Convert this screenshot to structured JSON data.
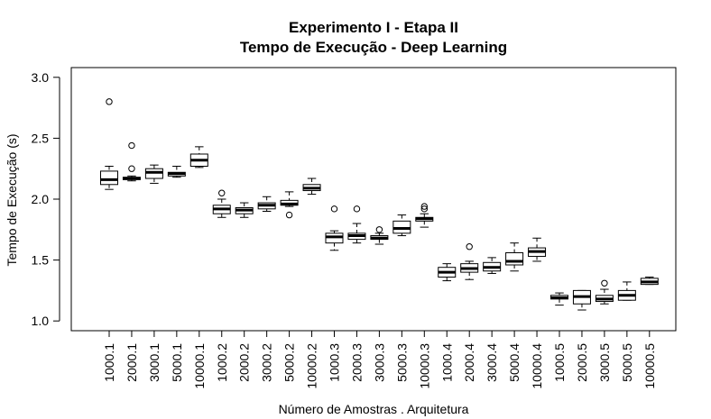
{
  "chart_data": {
    "type": "boxplot",
    "title": "Experimento I - Etapa II",
    "subtitle": "Tempo de Execução - Deep Learning",
    "xlabel": "Número de Amostras . Arquitetura",
    "ylabel": "Tempo de Execução (s)",
    "ylim": [
      0.92,
      3.08
    ],
    "yticks": [
      "1.0",
      "1.5",
      "2.0",
      "2.5",
      "3.0"
    ],
    "grid": false,
    "categories": [
      "1000.1",
      "2000.1",
      "3000.1",
      "5000.1",
      "10000.1",
      "1000.2",
      "2000.2",
      "3000.2",
      "5000.2",
      "10000.2",
      "1000.3",
      "2000.3",
      "3000.3",
      "5000.3",
      "10000.3",
      "1000.4",
      "2000.4",
      "3000.4",
      "5000.4",
      "10000.4",
      "1000.5",
      "2000.5",
      "3000.5",
      "5000.5",
      "10000.5"
    ],
    "boxes": [
      {
        "min": 2.08,
        "q1": 2.12,
        "median": 2.16,
        "q3": 2.23,
        "max": 2.27,
        "outliers": [
          2.8
        ]
      },
      {
        "min": 2.15,
        "q1": 2.16,
        "median": 2.17,
        "q3": 2.18,
        "max": 2.19,
        "outliers": [
          2.25,
          2.44
        ]
      },
      {
        "min": 2.13,
        "q1": 2.17,
        "median": 2.22,
        "q3": 2.25,
        "max": 2.28,
        "outliers": []
      },
      {
        "min": 2.18,
        "q1": 2.19,
        "median": 2.21,
        "q3": 2.22,
        "max": 2.27,
        "outliers": []
      },
      {
        "min": 2.26,
        "q1": 2.27,
        "median": 2.32,
        "q3": 2.37,
        "max": 2.43,
        "outliers": []
      },
      {
        "min": 1.85,
        "q1": 1.88,
        "median": 1.92,
        "q3": 1.95,
        "max": 2.0,
        "outliers": [
          2.05
        ]
      },
      {
        "min": 1.85,
        "q1": 1.88,
        "median": 1.91,
        "q3": 1.93,
        "max": 1.97,
        "outliers": []
      },
      {
        "min": 1.9,
        "q1": 1.92,
        "median": 1.95,
        "q3": 1.97,
        "max": 2.02,
        "outliers": []
      },
      {
        "min": 1.94,
        "q1": 1.95,
        "median": 1.96,
        "q3": 1.99,
        "max": 2.06,
        "outliers": [
          1.87
        ]
      },
      {
        "min": 2.04,
        "q1": 2.07,
        "median": 2.09,
        "q3": 2.12,
        "max": 2.17,
        "outliers": []
      },
      {
        "min": 1.58,
        "q1": 1.64,
        "median": 1.69,
        "q3": 1.72,
        "max": 1.74,
        "outliers": [
          1.92
        ]
      },
      {
        "min": 1.64,
        "q1": 1.67,
        "median": 1.7,
        "q3": 1.72,
        "max": 1.8,
        "outliers": [
          1.92
        ]
      },
      {
        "min": 1.63,
        "q1": 1.67,
        "median": 1.68,
        "q3": 1.7,
        "max": 1.72,
        "outliers": [
          1.75
        ]
      },
      {
        "min": 1.7,
        "q1": 1.72,
        "median": 1.76,
        "q3": 1.82,
        "max": 1.87,
        "outliers": []
      },
      {
        "min": 1.77,
        "q1": 1.82,
        "median": 1.84,
        "q3": 1.85,
        "max": 1.88,
        "outliers": [
          1.92,
          1.94
        ]
      },
      {
        "min": 1.33,
        "q1": 1.36,
        "median": 1.4,
        "q3": 1.44,
        "max": 1.47,
        "outliers": []
      },
      {
        "min": 1.34,
        "q1": 1.4,
        "median": 1.43,
        "q3": 1.47,
        "max": 1.49,
        "outliers": [
          1.61
        ]
      },
      {
        "min": 1.39,
        "q1": 1.41,
        "median": 1.44,
        "q3": 1.48,
        "max": 1.52,
        "outliers": []
      },
      {
        "min": 1.41,
        "q1": 1.46,
        "median": 1.49,
        "q3": 1.56,
        "max": 1.64,
        "outliers": []
      },
      {
        "min": 1.49,
        "q1": 1.53,
        "median": 1.57,
        "q3": 1.6,
        "max": 1.68,
        "outliers": []
      },
      {
        "min": 1.13,
        "q1": 1.18,
        "median": 1.19,
        "q3": 1.21,
        "max": 1.23,
        "outliers": []
      },
      {
        "min": 1.09,
        "q1": 1.14,
        "median": 1.2,
        "q3": 1.25,
        "max": 1.25,
        "outliers": []
      },
      {
        "min": 1.14,
        "q1": 1.16,
        "median": 1.18,
        "q3": 1.21,
        "max": 1.26,
        "outliers": [
          1.31
        ]
      },
      {
        "min": 1.17,
        "q1": 1.17,
        "median": 1.21,
        "q3": 1.25,
        "max": 1.32,
        "outliers": []
      },
      {
        "min": 1.3,
        "q1": 1.3,
        "median": 1.32,
        "q3": 1.35,
        "max": 1.36,
        "outliers": []
      }
    ]
  }
}
